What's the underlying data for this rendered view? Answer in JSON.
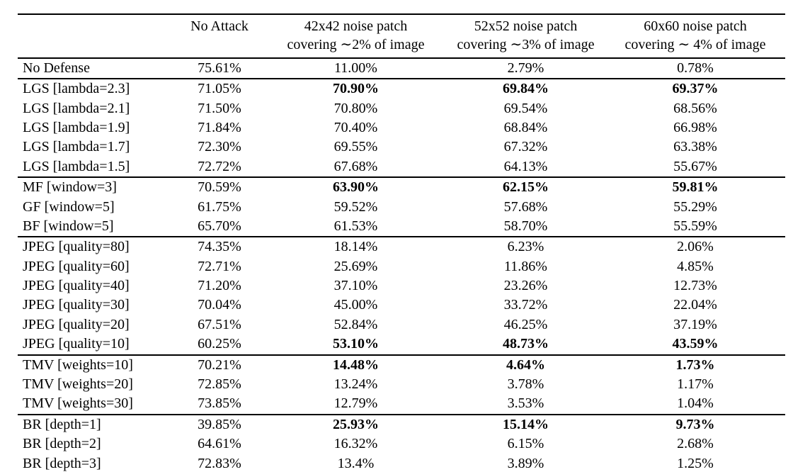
{
  "table": {
    "headers": [
      {
        "line1": "",
        "line2": ""
      },
      {
        "line1": "No Attack",
        "line2": ""
      },
      {
        "line1": "42x42 noise patch",
        "line2": "covering ∼2% of image"
      },
      {
        "line1": "52x52 noise patch",
        "line2": "covering ∼3% of image"
      },
      {
        "line1": "60x60 noise patch",
        "line2": "covering ∼ 4% of image"
      }
    ],
    "sections": [
      {
        "name": "no-defense",
        "rows": [
          {
            "label": "No Defense",
            "values": [
              "75.61%",
              "11.00%",
              "2.79%",
              "0.78%"
            ],
            "bold": [
              false,
              false,
              false,
              false
            ]
          }
        ]
      },
      {
        "name": "lgs",
        "rows": [
          {
            "label": "LGS [lambda=2.3]",
            "values": [
              "71.05%",
              "70.90%",
              "69.84%",
              "69.37%"
            ],
            "bold": [
              false,
              true,
              true,
              true
            ]
          },
          {
            "label": "LGS [lambda=2.1]",
            "values": [
              "71.50%",
              "70.80%",
              "69.54%",
              "68.56%"
            ],
            "bold": [
              false,
              false,
              false,
              false
            ]
          },
          {
            "label": "LGS [lambda=1.9]",
            "values": [
              "71.84%",
              "70.40%",
              "68.84%",
              "66.98%"
            ],
            "bold": [
              false,
              false,
              false,
              false
            ]
          },
          {
            "label": "LGS [lambda=1.7]",
            "values": [
              "72.30%",
              "69.55%",
              "67.32%",
              "63.38%"
            ],
            "bold": [
              false,
              false,
              false,
              false
            ]
          },
          {
            "label": "LGS [lambda=1.5]",
            "values": [
              "72.72%",
              "67.68%",
              "64.13%",
              "55.67%"
            ],
            "bold": [
              false,
              false,
              false,
              false
            ]
          }
        ]
      },
      {
        "name": "filters",
        "rows": [
          {
            "label": "MF [window=3]",
            "values": [
              "70.59%",
              "63.90%",
              "62.15%",
              "59.81%"
            ],
            "bold": [
              false,
              true,
              true,
              true
            ]
          },
          {
            "label": "GF [window=5]",
            "values": [
              "61.75%",
              "59.52%",
              "57.68%",
              "55.29%"
            ],
            "bold": [
              false,
              false,
              false,
              false
            ]
          },
          {
            "label": "BF [window=5]",
            "values": [
              "65.70%",
              "61.53%",
              "58.70%",
              "55.59%"
            ],
            "bold": [
              false,
              false,
              false,
              false
            ]
          }
        ]
      },
      {
        "name": "jpeg",
        "rows": [
          {
            "label": "JPEG [quality=80]",
            "values": [
              "74.35%",
              "18.14%",
              "6.23%",
              "2.06%"
            ],
            "bold": [
              false,
              false,
              false,
              false
            ]
          },
          {
            "label": "JPEG [quality=60]",
            "values": [
              "72.71%",
              "25.69%",
              "11.86%",
              "4.85%"
            ],
            "bold": [
              false,
              false,
              false,
              false
            ]
          },
          {
            "label": "JPEG [quality=40]",
            "values": [
              "71.20%",
              "37.10%",
              "23.26%",
              "12.73%"
            ],
            "bold": [
              false,
              false,
              false,
              false
            ]
          },
          {
            "label": "JPEG [quality=30]",
            "values": [
              "70.04%",
              "45.00%",
              "33.72%",
              "22.04%"
            ],
            "bold": [
              false,
              false,
              false,
              false
            ]
          },
          {
            "label": "JPEG [quality=20]",
            "values": [
              "67.51%",
              "52.84%",
              "46.25%",
              "37.19%"
            ],
            "bold": [
              false,
              false,
              false,
              false
            ]
          },
          {
            "label": "JPEG [quality=10]",
            "values": [
              "60.25%",
              "53.10%",
              "48.73%",
              "43.59%"
            ],
            "bold": [
              false,
              true,
              true,
              true
            ]
          }
        ]
      },
      {
        "name": "tmv",
        "rows": [
          {
            "label": "TMV [weights=10]",
            "values": [
              "70.21%",
              "14.48%",
              "4.64%",
              "1.73%"
            ],
            "bold": [
              false,
              true,
              true,
              true
            ]
          },
          {
            "label": "TMV [weights=20]",
            "values": [
              "72.85%",
              "13.24%",
              "3.78%",
              "1.17%"
            ],
            "bold": [
              false,
              false,
              false,
              false
            ]
          },
          {
            "label": "TMV [weights=30]",
            "values": [
              "73.85%",
              "12.79%",
              "3.53%",
              "1.04%"
            ],
            "bold": [
              false,
              false,
              false,
              false
            ]
          }
        ]
      },
      {
        "name": "br",
        "rows": [
          {
            "label": "BR [depth=1]",
            "values": [
              "39.85%",
              "25.93%",
              "15.14%",
              "9.73%"
            ],
            "bold": [
              false,
              true,
              true,
              true
            ]
          },
          {
            "label": "BR [depth=2]",
            "values": [
              "64.61%",
              "16.32%",
              "6.15%",
              "2.68%"
            ],
            "bold": [
              false,
              false,
              false,
              false
            ]
          },
          {
            "label": "BR [depth=3]",
            "values": [
              "72.83%",
              "13.4%",
              "3.89%",
              "1.25%"
            ],
            "bold": [
              false,
              false,
              false,
              false
            ]
          }
        ]
      }
    ]
  }
}
